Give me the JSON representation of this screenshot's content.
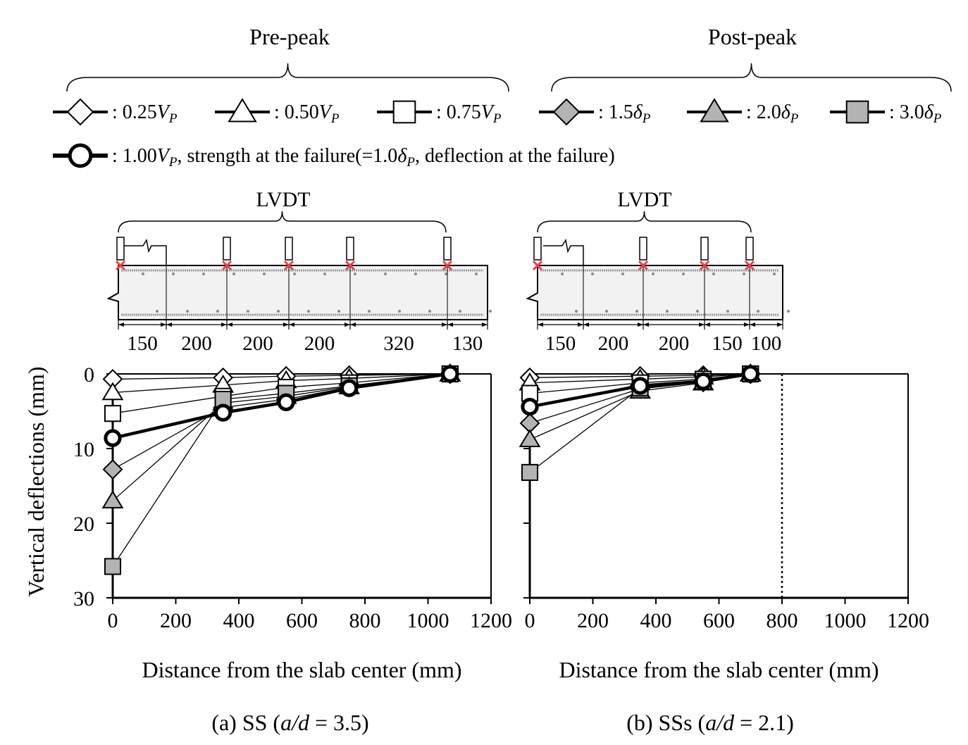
{
  "legend": {
    "group_pre": "Pre-peak",
    "group_post": "Post-peak",
    "entries": [
      {
        "key": "p025",
        "prefix": ": 0.25",
        "sym": "V",
        "sub": "P",
        "marker": "diamond",
        "fill": "#ffffff"
      },
      {
        "key": "p050",
        "prefix": ": 0.50",
        "sym": "V",
        "sub": "P",
        "marker": "triangle",
        "fill": "#ffffff"
      },
      {
        "key": "p075",
        "prefix": ": 0.75",
        "sym": "V",
        "sub": "P",
        "marker": "square",
        "fill": "#ffffff"
      },
      {
        "key": "d15",
        "prefix": ": 1.5",
        "sym": "δ",
        "sub": "P",
        "marker": "diamond",
        "fill": "#b3b3b3"
      },
      {
        "key": "d20",
        "prefix": ": 2.0",
        "sym": "δ",
        "sub": "P",
        "marker": "triangle",
        "fill": "#b3b3b3"
      },
      {
        "key": "d30",
        "prefix": ": 3.0",
        "sym": "δ",
        "sub": "P",
        "marker": "square",
        "fill": "#b3b3b3"
      }
    ],
    "failure": {
      "prefix": ": 1.00",
      "sym": "V",
      "sub": "P",
      "mid": ", strength at the failure(=1.0",
      "sym2": "δ",
      "sub2": "P",
      "tail": ", deflection at the failure)",
      "marker": "circle"
    }
  },
  "schematics": [
    {
      "label": "LVDT",
      "dims": [
        "150",
        "200",
        "200",
        "200",
        "320",
        "130"
      ]
    },
    {
      "label": "LVDT",
      "dims": [
        "150",
        "200",
        "200",
        "150",
        "100"
      ]
    }
  ],
  "colors": {
    "gray_fill": "#b3b3b3",
    "lvdt_mark": "#e8434a",
    "slab_fill": "#f2f2f2"
  },
  "axes": {
    "ylabel": "Vertical deflections (mm)",
    "xlabel": "Distance from the slab center (mm)",
    "xticks": [
      "0",
      "200",
      "400",
      "600",
      "800",
      "1000",
      "1200"
    ],
    "yticks": [
      "0",
      "10",
      "20",
      "30"
    ]
  },
  "chart_data": [
    {
      "type": "line",
      "caption_prefix": "(a)  SS (",
      "caption_math": "a/d",
      "caption_suffix": " = 3.5)",
      "xlim": [
        0,
        1200
      ],
      "ylim": [
        0,
        30
      ],
      "y_inverted": true,
      "x": [
        0,
        350,
        550,
        750,
        1070
      ],
      "series": [
        {
          "key": "p025",
          "marker": "diamond",
          "fill": "#ffffff",
          "y": [
            0.7,
            0.5,
            0.3,
            0.2,
            0
          ]
        },
        {
          "key": "p050",
          "marker": "triangle",
          "fill": "#ffffff",
          "y": [
            2.5,
            1.5,
            0.9,
            0.6,
            0
          ]
        },
        {
          "key": "p075",
          "marker": "square",
          "fill": "#ffffff",
          "y": [
            5.3,
            3.0,
            1.8,
            1.2,
            0
          ]
        },
        {
          "key": "p100",
          "marker": "circle",
          "fill": "#ffffff",
          "bold": true,
          "y": [
            8.6,
            5.2,
            3.8,
            1.9,
            0
          ]
        },
        {
          "key": "d15",
          "marker": "diamond",
          "fill": "#b3b3b3",
          "y": [
            12.8,
            4.5,
            3.4,
            1.8,
            0
          ]
        },
        {
          "key": "d20",
          "marker": "triangle",
          "fill": "#b3b3b3",
          "y": [
            17.0,
            3.9,
            3.0,
            1.7,
            0
          ]
        },
        {
          "key": "d30",
          "marker": "square",
          "fill": "#b3b3b3",
          "y": [
            25.8,
            3.4,
            2.6,
            1.6,
            0
          ]
        }
      ]
    },
    {
      "type": "line",
      "caption_prefix": "(b)  SSs (",
      "caption_math": "a/d",
      "caption_suffix": " = 2.1)",
      "xlim": [
        0,
        1200
      ],
      "ylim": [
        0,
        30
      ],
      "y_inverted": true,
      "reference_line_x": 800,
      "x": [
        0,
        350,
        550,
        700
      ],
      "series": [
        {
          "key": "p025",
          "marker": "diamond",
          "fill": "#ffffff",
          "y": [
            0.5,
            0.3,
            0.2,
            0
          ]
        },
        {
          "key": "p050",
          "marker": "triangle",
          "fill": "#ffffff",
          "y": [
            1.2,
            0.7,
            0.4,
            0
          ]
        },
        {
          "key": "p075",
          "marker": "square",
          "fill": "#ffffff",
          "y": [
            2.6,
            1.2,
            0.7,
            0
          ]
        },
        {
          "key": "p100",
          "marker": "circle",
          "fill": "#ffffff",
          "bold": true,
          "y": [
            4.4,
            1.6,
            1.0,
            0
          ]
        },
        {
          "key": "d15",
          "marker": "diamond",
          "fill": "#b3b3b3",
          "y": [
            6.6,
            2.0,
            1.1,
            0
          ]
        },
        {
          "key": "d20",
          "marker": "triangle",
          "fill": "#b3b3b3",
          "y": [
            8.8,
            2.3,
            1.2,
            0
          ]
        },
        {
          "key": "d30",
          "marker": "square",
          "fill": "#b3b3b3",
          "y": [
            13.2,
            1.9,
            1.0,
            0
          ]
        }
      ]
    }
  ]
}
